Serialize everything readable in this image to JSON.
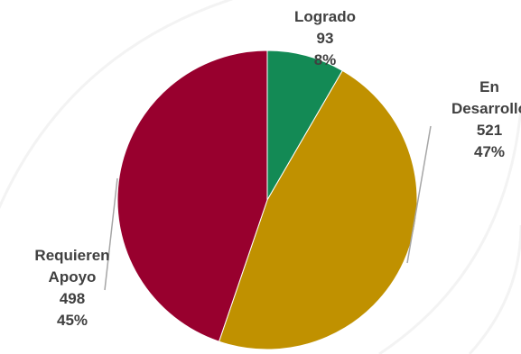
{
  "chart_data": {
    "type": "pie",
    "categories": [
      "Logrado",
      "En Desarrollo",
      "Requieren Apoyo"
    ],
    "values": [
      93,
      521,
      498
    ],
    "percents": [
      "8%",
      "47%",
      "45%"
    ],
    "label_lines": [
      [
        "Logrado"
      ],
      [
        "En",
        "Desarrollo"
      ],
      [
        "Requieren",
        "Apoyo"
      ]
    ],
    "colors": [
      "#138a55",
      "#c09100",
      "#98002e"
    ],
    "title": "",
    "legend": "none"
  }
}
